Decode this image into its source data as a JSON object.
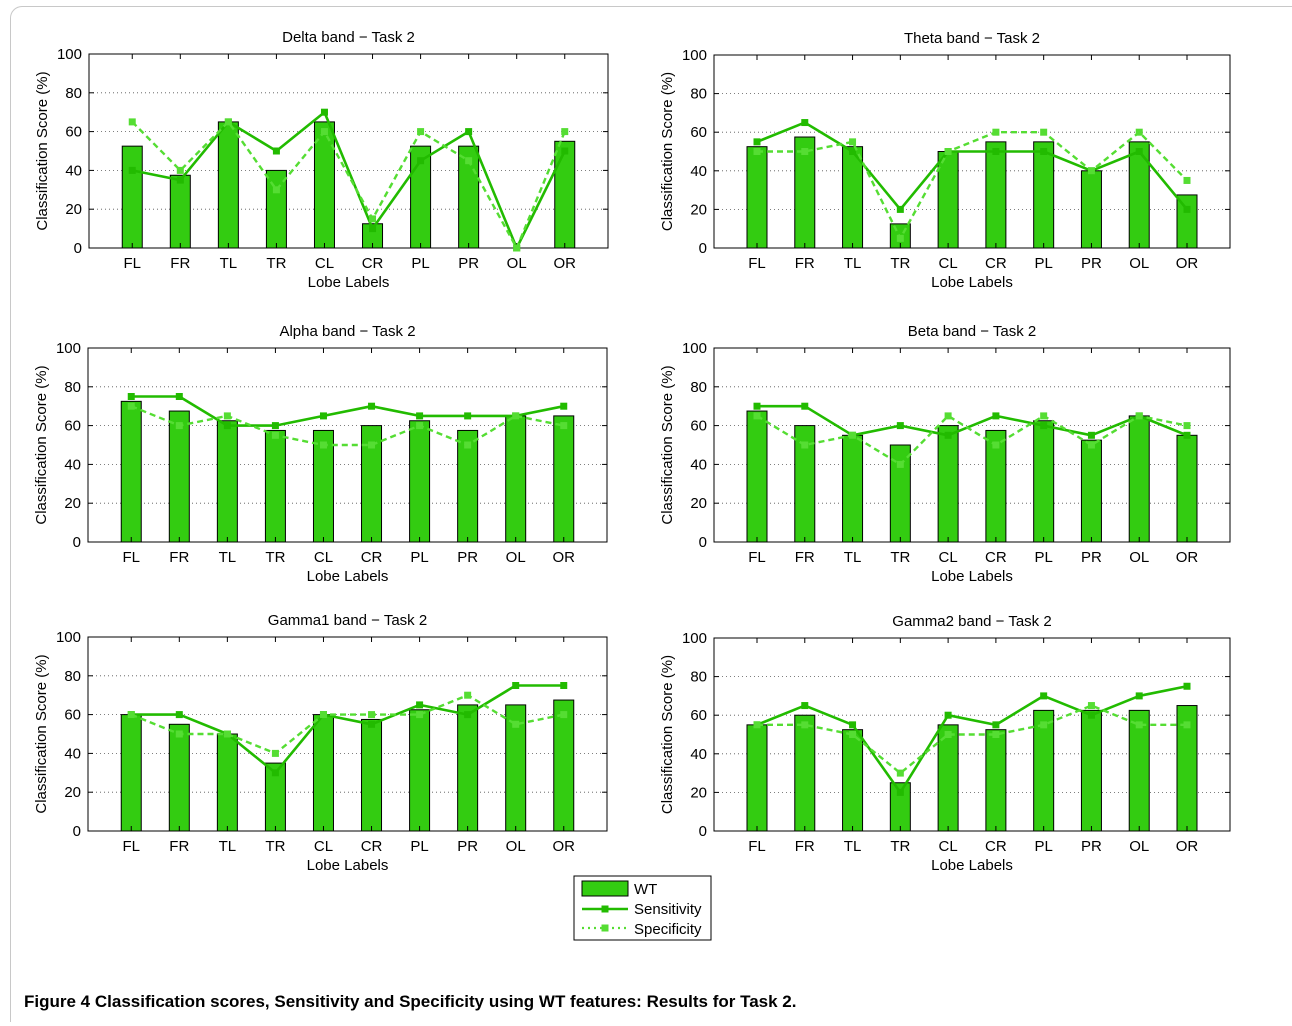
{
  "caption": {
    "label": "Figure 4",
    "text": "Classification scores, Sensitivity and Specificity using WT features: Results for Task 2."
  },
  "legend": {
    "items": [
      "WT",
      "Sensitivity",
      "Specificity"
    ]
  },
  "colors": {
    "bar": "#33cc11",
    "line": "#22bb00",
    "dotted": "#55dd33"
  },
  "chart_data": [
    {
      "type": "bar",
      "title": "Delta band − Task 2",
      "xlabel": "Lobe Labels",
      "ylabel": "Classification Score (%)",
      "ylim": [
        0,
        100
      ],
      "yticks": [
        0,
        20,
        40,
        60,
        80,
        100
      ],
      "grid": true,
      "categories": [
        "FL",
        "FR",
        "TL",
        "TR",
        "CL",
        "CR",
        "PL",
        "PR",
        "OL",
        "OR"
      ],
      "series": [
        {
          "name": "WT",
          "type": "bar",
          "values": [
            52.5,
            37.5,
            65,
            40,
            65,
            12.5,
            52.5,
            52.5,
            0,
            55
          ]
        },
        {
          "name": "Sensitivity",
          "type": "line",
          "values": [
            40,
            35,
            65,
            50,
            70,
            10,
            45,
            60,
            0,
            50
          ]
        },
        {
          "name": "Specificity",
          "type": "line",
          "values": [
            65,
            40,
            65,
            30,
            60,
            15,
            60,
            45,
            0,
            60
          ]
        }
      ]
    },
    {
      "type": "bar",
      "title": "Theta band − Task 2",
      "xlabel": "Lobe Labels",
      "ylabel": "Classification Score (%)",
      "ylim": [
        0,
        100
      ],
      "yticks": [
        0,
        20,
        40,
        60,
        80,
        100
      ],
      "grid": true,
      "categories": [
        "FL",
        "FR",
        "TL",
        "TR",
        "CL",
        "CR",
        "PL",
        "PR",
        "OL",
        "OR"
      ],
      "series": [
        {
          "name": "WT",
          "type": "bar",
          "values": [
            52.5,
            57.5,
            52.5,
            12.5,
            50,
            55,
            55,
            40,
            55,
            27.5
          ]
        },
        {
          "name": "Sensitivity",
          "type": "line",
          "values": [
            55,
            65,
            50,
            20,
            50,
            50,
            50,
            40,
            50,
            20
          ]
        },
        {
          "name": "Specificity",
          "type": "line",
          "values": [
            50,
            50,
            55,
            5,
            50,
            60,
            60,
            40,
            60,
            35
          ]
        }
      ]
    },
    {
      "type": "bar",
      "title": "Alpha band − Task 2",
      "xlabel": "Lobe Labels",
      "ylabel": "Classification Score (%)",
      "ylim": [
        0,
        100
      ],
      "yticks": [
        0,
        20,
        40,
        60,
        80,
        100
      ],
      "grid": true,
      "categories": [
        "FL",
        "FR",
        "TL",
        "TR",
        "CL",
        "CR",
        "PL",
        "PR",
        "OL",
        "OR"
      ],
      "series": [
        {
          "name": "WT",
          "type": "bar",
          "values": [
            72.5,
            67.5,
            62.5,
            57.5,
            57.5,
            60,
            62.5,
            57.5,
            65,
            65
          ]
        },
        {
          "name": "Sensitivity",
          "type": "line",
          "values": [
            75,
            75,
            60,
            60,
            65,
            70,
            65,
            65,
            65,
            70
          ]
        },
        {
          "name": "Specificity",
          "type": "line",
          "values": [
            70,
            60,
            65,
            55,
            50,
            50,
            60,
            50,
            65,
            60
          ]
        }
      ]
    },
    {
      "type": "bar",
      "title": "Beta band − Task 2",
      "xlabel": "Lobe Labels",
      "ylabel": "Classification Score (%)",
      "ylim": [
        0,
        100
      ],
      "yticks": [
        0,
        20,
        40,
        60,
        80,
        100
      ],
      "grid": true,
      "categories": [
        "FL",
        "FR",
        "TL",
        "TR",
        "CL",
        "CR",
        "PL",
        "PR",
        "OL",
        "OR"
      ],
      "series": [
        {
          "name": "WT",
          "type": "bar",
          "values": [
            67.5,
            60,
            55,
            50,
            60,
            57.5,
            62.5,
            52.5,
            65,
            55
          ]
        },
        {
          "name": "Sensitivity",
          "type": "line",
          "values": [
            70,
            70,
            55,
            60,
            55,
            65,
            60,
            55,
            65,
            55
          ]
        },
        {
          "name": "Specificity",
          "type": "line",
          "values": [
            65,
            50,
            55,
            40,
            65,
            50,
            65,
            50,
            65,
            60
          ]
        }
      ]
    },
    {
      "type": "bar",
      "title": "Gamma1 band − Task 2",
      "xlabel": "Lobe Labels",
      "ylabel": "Classification Score (%)",
      "ylim": [
        0,
        100
      ],
      "yticks": [
        0,
        20,
        40,
        60,
        80,
        100
      ],
      "grid": true,
      "categories": [
        "FL",
        "FR",
        "TL",
        "TR",
        "CL",
        "CR",
        "PL",
        "PR",
        "OL",
        "OR"
      ],
      "series": [
        {
          "name": "WT",
          "type": "bar",
          "values": [
            60,
            55,
            50,
            35,
            60,
            57.5,
            62.5,
            65,
            65,
            67.5
          ]
        },
        {
          "name": "Sensitivity",
          "type": "line",
          "values": [
            60,
            60,
            50,
            30,
            60,
            55,
            65,
            60,
            75,
            75
          ]
        },
        {
          "name": "Specificity",
          "type": "line",
          "values": [
            60,
            50,
            50,
            40,
            60,
            60,
            60,
            70,
            55,
            60
          ]
        }
      ]
    },
    {
      "type": "bar",
      "title": "Gamma2 band − Task 2",
      "xlabel": "Lobe Labels",
      "ylabel": "Classification Score (%)",
      "ylim": [
        0,
        100
      ],
      "yticks": [
        0,
        20,
        40,
        60,
        80,
        100
      ],
      "grid": true,
      "categories": [
        "FL",
        "FR",
        "TL",
        "TR",
        "CL",
        "CR",
        "PL",
        "PR",
        "OL",
        "OR"
      ],
      "series": [
        {
          "name": "WT",
          "type": "bar",
          "values": [
            55,
            60,
            52.5,
            25,
            55,
            52.5,
            62.5,
            62.5,
            62.5,
            65
          ]
        },
        {
          "name": "Sensitivity",
          "type": "line",
          "values": [
            55,
            65,
            55,
            20,
            60,
            55,
            70,
            60,
            70,
            75
          ]
        },
        {
          "name": "Specificity",
          "type": "line",
          "values": [
            55,
            55,
            50,
            30,
            50,
            50,
            55,
            65,
            55,
            55
          ]
        }
      ]
    }
  ]
}
